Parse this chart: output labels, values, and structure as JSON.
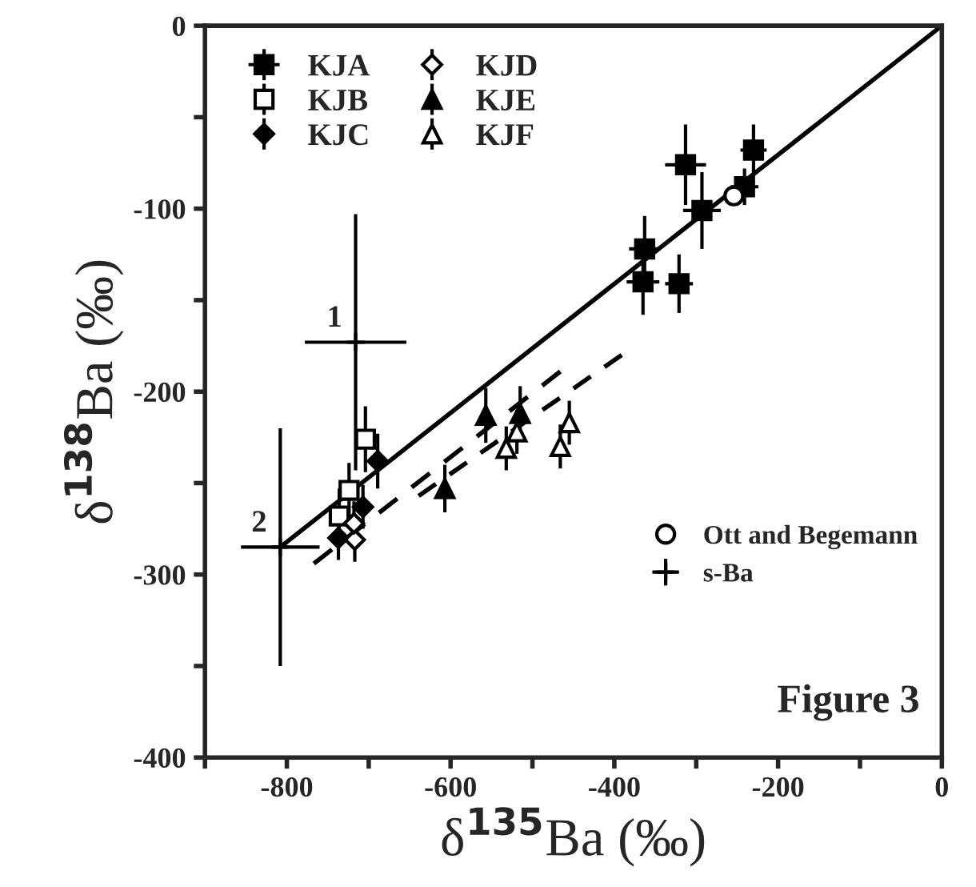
{
  "chart_data": {
    "type": "scatter",
    "xlabel": "δ$^{135}$Ba (‰)",
    "ylabel": "δ$^{138}$Ba (‰)",
    "xlim": [
      -900,
      0
    ],
    "ylim": [
      -400,
      0
    ],
    "xticks": [
      {
        "value": -900,
        "label": null
      },
      -800,
      {
        "value": -700,
        "label": null
      },
      -600,
      {
        "value": -500,
        "label": null
      },
      -400,
      {
        "value": -300,
        "label": null
      },
      -200,
      {
        "value": -100,
        "label": null
      },
      0
    ],
    "yticks": [
      -400,
      {
        "value": -350,
        "label": null
      },
      -300,
      {
        "value": -250,
        "label": null
      },
      -200,
      {
        "value": -150,
        "label": null
      },
      -100,
      {
        "value": -50,
        "label": null
      },
      0
    ],
    "grid": false,
    "legend": "top left",
    "annotations": [
      {
        "text": "1",
        "x": -716,
        "y": -173
      },
      {
        "text": "2",
        "x": -808,
        "y": -285
      },
      "Figure 3"
    ],
    "series": [
      {
        "name": "KJA",
        "color": "#000000",
        "marker": "square",
        "x": [
          -313,
          -230,
          -293,
          -241,
          -363,
          -365,
          -321
        ],
        "values": [
          -76,
          -68,
          -101,
          -88,
          -122,
          -140,
          -141
        ],
        "errors": [
          22,
          14,
          21,
          10,
          18,
          18,
          16
        ],
        "xerrors": [
          25,
          16,
          23,
          17,
          19,
          20,
          17
        ]
      },
      {
        "name": "KJB",
        "color": "#ffffff",
        "marker": "square",
        "x": [
          -704,
          -724,
          -736
        ],
        "values": [
          -226,
          -254,
          -268
        ],
        "errors": [
          18,
          15,
          15
        ]
      },
      {
        "name": "KJC",
        "color": "#000000",
        "marker": "diamond",
        "x": [
          -689,
          -737,
          -707
        ],
        "values": [
          -238,
          -280,
          -263
        ],
        "errors": [
          15,
          12,
          12
        ]
      },
      {
        "name": "KJD",
        "color": "#ffffff",
        "marker": "diamond",
        "x": [
          -717,
          -718
        ],
        "values": [
          -281,
          -272
        ],
        "errors": [
          12,
          12
        ]
      },
      {
        "name": "KJE",
        "color": "#000000",
        "marker": "triangle",
        "x": [
          -607,
          -557,
          -515
        ],
        "values": [
          -253,
          -213,
          -212
        ],
        "errors": [
          13,
          15,
          15
        ]
      },
      {
        "name": "KJF",
        "color": "#ffffff",
        "marker": "triangle",
        "x": [
          -532,
          -519,
          -466,
          -455
        ],
        "values": [
          -231,
          -222,
          -230,
          -217
        ],
        "errors": [
          12,
          12,
          12,
          12
        ]
      },
      {
        "name": "Ott and Begemann",
        "color": "#ffffff",
        "marker": "circle",
        "x": [
          -254
        ],
        "values": [
          -93
        ]
      },
      {
        "name": "s-Ba",
        "color": "#000000",
        "marker": "cross",
        "x": [
          -716,
          -808
        ],
        "values": [
          -173,
          -285
        ],
        "errors": [
          70,
          65
        ],
        "xerrors": [
          62,
          48
        ]
      },
      {
        "type": "line",
        "color": "#000000",
        "line_style": "solid",
        "x": [
          -808,
          0
        ],
        "values": [
          -285,
          0
        ]
      },
      {
        "type": "line",
        "color": "#000000",
        "line_style": "dashed",
        "x": [
          -767,
          -466
        ],
        "values": [
          -294,
          -189
        ]
      },
      {
        "type": "line",
        "color": "#000000",
        "line_style": "dashed",
        "x": [
          -639,
          -391
        ],
        "values": [
          -257,
          -180
        ]
      }
    ]
  }
}
